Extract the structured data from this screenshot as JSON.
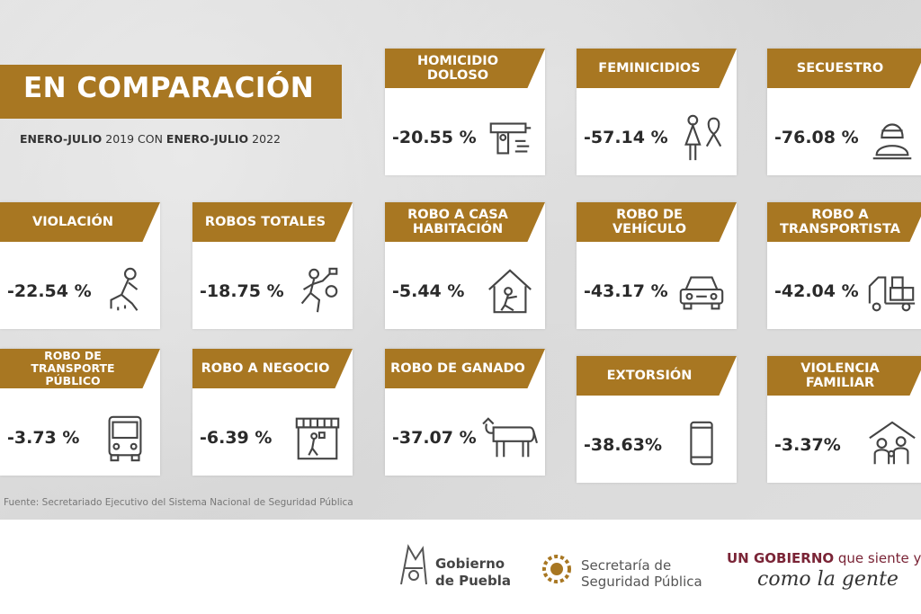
{
  "title": "EN COMPARACIÓN",
  "subtitle": {
    "part1_bold": "ENERO-JULIO",
    "part1": " 2019 CON ",
    "part2_bold": "ENERO-JULIO",
    "part2": " 2022"
  },
  "cards": [
    {
      "label": "HOMICIDIO DOLOSO",
      "value": "-20.55 %",
      "icon": "gun-icon"
    },
    {
      "label": "FEMINICIDIOS",
      "value": "-57.14 %",
      "icon": "woman-ribbon-icon"
    },
    {
      "label": "SECUESTRO",
      "value": "-76.08 %",
      "icon": "hooded-person-icon"
    },
    {
      "label": "VIOLACIÓN",
      "value": "-22.54 %",
      "icon": "kneeling-person-icon"
    },
    {
      "label": "ROBOS TOTALES",
      "value": "-18.75 %",
      "icon": "thief-running-icon"
    },
    {
      "label": "ROBO A CASA HABITACIÓN",
      "value": "-5.44 %",
      "icon": "house-thief-icon"
    },
    {
      "label": "ROBO DE VEHÍCULO",
      "value": "-43.17 %",
      "icon": "car-icon"
    },
    {
      "label": "ROBO A TRANSPORTISTA",
      "value": "-42.04 %",
      "icon": "truck-icon"
    },
    {
      "label": "ROBO DE TRANSPORTE PÚBLICO",
      "value": "-3.73 %",
      "icon": "bus-icon"
    },
    {
      "label": "ROBO A NEGOCIO",
      "value": "-6.39 %",
      "icon": "store-icon"
    },
    {
      "label": "ROBO DE GANADO",
      "value": "-37.07 %",
      "icon": "cow-icon"
    },
    {
      "label": "EXTORSIÓN",
      "value": "-38.63%",
      "icon": "phone-icon"
    },
    {
      "label": "VIOLENCIA FAMILIAR",
      "value": "-3.37%",
      "icon": "family-house-icon"
    }
  ],
  "source": "Fuente: Secretariado Ejecutivo del Sistema Nacional de Seguridad Pública",
  "footer": {
    "gobierno_line1": "Gobierno",
    "gobierno_line2": "de Puebla",
    "ssp_line1": "Secretaría de",
    "ssp_line2": "Seguridad Pública",
    "slogan_bold": "UN GOBIERNO",
    "slogan_rest": " que siente y piensa",
    "slogan_line2": "como la gente"
  },
  "colors": {
    "accent": "#a87722",
    "slogan": "#7a2436"
  }
}
